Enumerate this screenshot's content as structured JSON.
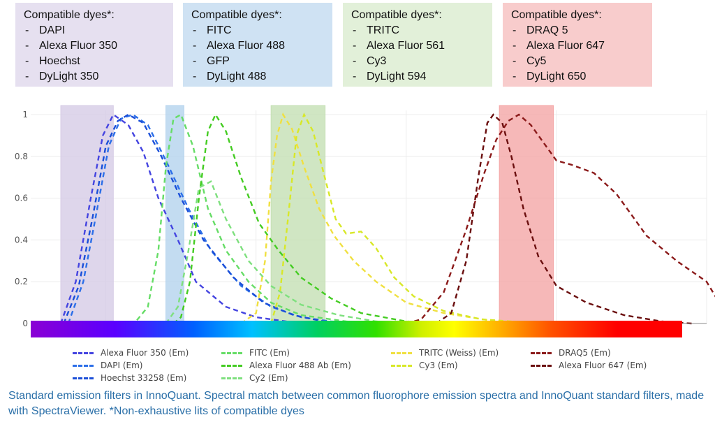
{
  "dye_boxes": [
    {
      "title": "Compatible dyes*:",
      "color": "#e6e0f0",
      "items": [
        "DAPI",
        "Alexa Fluor 350",
        "Hoechst",
        "DyLight 350"
      ]
    },
    {
      "title": "Compatible dyes*:",
      "color": "#cfe2f3",
      "items": [
        "FITC",
        "Alexa Fluor 488",
        "GFP",
        "DyLight 488"
      ]
    },
    {
      "title": "Compatible dyes*:",
      "color": "#e2f0d9",
      "items": [
        "TRITC",
        "Alexa Fluor 561",
        "Cy3",
        "DyLight 594"
      ]
    },
    {
      "title": "Compatible dyes*:",
      "color": "#f8cccc",
      "items": [
        "DRAQ 5",
        "Alexa Fluor 647",
        "Cy5",
        "DyLight 650"
      ]
    }
  ],
  "chart_data": {
    "type": "line",
    "title": "",
    "xlabel": "",
    "ylabel": "",
    "xlim": [
      350,
      800
    ],
    "ylim": [
      0,
      1
    ],
    "yticks": [
      0,
      0.2,
      0.4,
      0.6,
      0.8,
      1
    ],
    "ytick_labels": [
      "0",
      "0.2",
      "0.4",
      "0.6",
      "0.8",
      "1"
    ],
    "xticks": [
      400,
      500,
      600,
      700,
      800
    ],
    "grid": true,
    "legend_position": "bottom",
    "filters": [
      {
        "color": "#d6cce6",
        "range": [
          370,
          405
        ]
      },
      {
        "color": "#b4d3ee",
        "range": [
          440,
          452
        ]
      },
      {
        "color": "#c4e0b4",
        "range": [
          510,
          546
        ]
      },
      {
        "color": "#f4a6a6",
        "range": [
          662,
          698
        ]
      }
    ],
    "series": [
      {
        "name": "Alexa Fluor 350 (Em)",
        "color": "#4444e0",
        "points": [
          [
            370,
            0.0
          ],
          [
            380,
            0.2
          ],
          [
            390,
            0.6
          ],
          [
            398,
            0.9
          ],
          [
            405,
            1.0
          ],
          [
            415,
            0.95
          ],
          [
            425,
            0.82
          ],
          [
            435,
            0.6
          ],
          [
            448,
            0.4
          ],
          [
            460,
            0.2
          ],
          [
            480,
            0.08
          ],
          [
            500,
            0.03
          ],
          [
            520,
            0.01
          ],
          [
            540,
            0
          ]
        ]
      },
      {
        "name": "DAPI (Em)",
        "color": "#2c6fe8",
        "points": [
          [
            375,
            0.0
          ],
          [
            385,
            0.2
          ],
          [
            393,
            0.5
          ],
          [
            402,
            0.85
          ],
          [
            410,
            0.98
          ],
          [
            418,
            1.0
          ],
          [
            428,
            0.95
          ],
          [
            440,
            0.78
          ],
          [
            455,
            0.55
          ],
          [
            470,
            0.35
          ],
          [
            490,
            0.18
          ],
          [
            510,
            0.08
          ],
          [
            530,
            0.03
          ],
          [
            550,
            0.01
          ],
          [
            580,
            0
          ]
        ]
      },
      {
        "name": "Hoechst 33258 (Em)",
        "color": "#1a4ed8",
        "points": [
          [
            372,
            0.0
          ],
          [
            382,
            0.18
          ],
          [
            391,
            0.5
          ],
          [
            400,
            0.85
          ],
          [
            408,
            0.97
          ],
          [
            415,
            1.0
          ],
          [
            425,
            0.96
          ],
          [
            437,
            0.8
          ],
          [
            450,
            0.6
          ],
          [
            465,
            0.4
          ],
          [
            485,
            0.22
          ],
          [
            505,
            0.1
          ],
          [
            525,
            0.04
          ],
          [
            545,
            0.01
          ],
          [
            575,
            0
          ]
        ]
      },
      {
        "name": "FITC (Em)",
        "color": "#66dd66",
        "points": [
          [
            410,
            0
          ],
          [
            420,
            0.01
          ],
          [
            428,
            0.08
          ],
          [
            435,
            0.35
          ],
          [
            440,
            0.75
          ],
          [
            445,
            0.98
          ],
          [
            450,
            1.0
          ],
          [
            458,
            0.85
          ],
          [
            468,
            0.55
          ],
          [
            480,
            0.35
          ],
          [
            495,
            0.2
          ],
          [
            510,
            0.1
          ],
          [
            530,
            0.04
          ],
          [
            560,
            0.01
          ],
          [
            600,
            0
          ]
        ]
      },
      {
        "name": "Alexa Fluor 488 Ab (Em)",
        "color": "#44cc22",
        "points": [
          [
            445,
            0
          ],
          [
            450,
            0.03
          ],
          [
            456,
            0.2
          ],
          [
            462,
            0.6
          ],
          [
            468,
            0.92
          ],
          [
            473,
            1.0
          ],
          [
            480,
            0.92
          ],
          [
            490,
            0.7
          ],
          [
            502,
            0.48
          ],
          [
            515,
            0.35
          ],
          [
            530,
            0.22
          ],
          [
            550,
            0.12
          ],
          [
            570,
            0.05
          ],
          [
            600,
            0.01
          ],
          [
            630,
            0
          ]
        ]
      },
      {
        "name": "Cy2 (Em)",
        "color": "#7ee07e",
        "points": [
          [
            440,
            0
          ],
          [
            448,
            0.08
          ],
          [
            455,
            0.35
          ],
          [
            462,
            0.65
          ],
          [
            470,
            0.68
          ],
          [
            480,
            0.5
          ],
          [
            495,
            0.3
          ],
          [
            510,
            0.18
          ],
          [
            530,
            0.09
          ],
          [
            555,
            0.04
          ],
          [
            580,
            0.01
          ],
          [
            620,
            0
          ]
        ]
      },
      {
        "name": "TRITC  (Weiss) (Em)",
        "color": "#f0e040",
        "points": [
          [
            490,
            0
          ],
          [
            500,
            0.05
          ],
          [
            506,
            0.3
          ],
          [
            510,
            0.68
          ],
          [
            514,
            0.9
          ],
          [
            518,
            1.0
          ],
          [
            524,
            0.93
          ],
          [
            532,
            0.75
          ],
          [
            542,
            0.55
          ],
          [
            552,
            0.42
          ],
          [
            565,
            0.3
          ],
          [
            580,
            0.2
          ],
          [
            600,
            0.1
          ],
          [
            625,
            0.05
          ],
          [
            660,
            0.01
          ],
          [
            700,
            0
          ]
        ]
      },
      {
        "name": "Cy3 (Em)",
        "color": "#d8e828",
        "points": [
          [
            510,
            0
          ],
          [
            516,
            0.15
          ],
          [
            522,
            0.55
          ],
          [
            527,
            0.9
          ],
          [
            532,
            1.0
          ],
          [
            538,
            0.92
          ],
          [
            545,
            0.72
          ],
          [
            553,
            0.5
          ],
          [
            560,
            0.43
          ],
          [
            570,
            0.44
          ],
          [
            580,
            0.36
          ],
          [
            592,
            0.22
          ],
          [
            605,
            0.13
          ],
          [
            625,
            0.06
          ],
          [
            650,
            0.02
          ],
          [
            690,
            0
          ]
        ]
      },
      {
        "name": "DRAQ5 (Em)",
        "color": "#8b1a1a",
        "points": [
          [
            600,
            0
          ],
          [
            610,
            0.02
          ],
          [
            625,
            0.15
          ],
          [
            640,
            0.45
          ],
          [
            652,
            0.72
          ],
          [
            660,
            0.88
          ],
          [
            668,
            0.97
          ],
          [
            675,
            1.0
          ],
          [
            683,
            0.95
          ],
          [
            692,
            0.86
          ],
          [
            700,
            0.78
          ],
          [
            710,
            0.76
          ],
          [
            725,
            0.72
          ],
          [
            740,
            0.62
          ],
          [
            760,
            0.42
          ],
          [
            780,
            0.3
          ],
          [
            800,
            0.2
          ],
          [
            810,
            0.08
          ]
        ]
      },
      {
        "name": "Alexa Fluor 647 (Em)",
        "color": "#6b0f0f",
        "points": [
          [
            620,
            0
          ],
          [
            630,
            0.05
          ],
          [
            640,
            0.3
          ],
          [
            648,
            0.7
          ],
          [
            654,
            0.96
          ],
          [
            658,
            1.0
          ],
          [
            664,
            0.96
          ],
          [
            670,
            0.8
          ],
          [
            678,
            0.55
          ],
          [
            688,
            0.32
          ],
          [
            700,
            0.18
          ],
          [
            720,
            0.1
          ],
          [
            745,
            0.04
          ],
          [
            770,
            0.01
          ],
          [
            790,
            0
          ]
        ]
      }
    ],
    "legend_columns": [
      [
        "Alexa Fluor 350 (Em)",
        "DAPI (Em)",
        "Hoechst 33258 (Em)"
      ],
      [
        "FITC (Em)",
        "Alexa Fluor 488 Ab (Em)",
        "Cy2 (Em)"
      ],
      [
        "TRITC  (Weiss) (Em)",
        "Cy3 (Em)"
      ],
      [
        "DRAQ5 (Em)",
        "Alexa Fluor 647 (Em)"
      ]
    ]
  },
  "caption": {
    "lead": "Standard emission filters in InnoQuant.",
    "text": " Spectral match between common fluorophore emission spectra and InnoQuant standard filters, made with SpectraViewer. *Non-exhaustive lits of compatible dyes"
  }
}
